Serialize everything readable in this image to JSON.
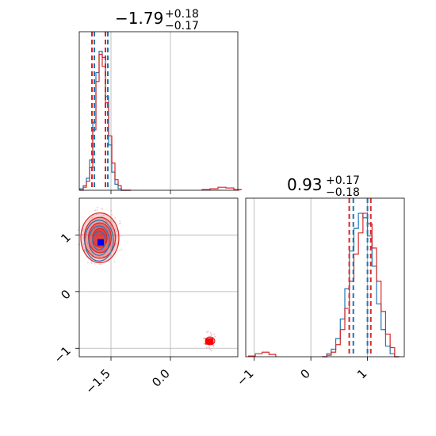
{
  "chart_data": {
    "type": "corner",
    "colors": {
      "blue": "#1f77b4",
      "red": "#d62728",
      "marker_blue": "#0000ff",
      "marker_red": "#ff0000"
    },
    "grid": true,
    "panels": [
      {
        "id": "hist_param1",
        "type": "histogram",
        "title": {
          "value": "−1.79",
          "plus": "+0.18",
          "minus": "−0.17"
        },
        "xlim": [
          -2.3,
          1.7
        ],
        "ylim": [
          0,
          1.05
        ],
        "xticks": [
          -1.5,
          0.0
        ],
        "bins_x": [
          -2.28,
          -2.2,
          -2.12,
          -2.04,
          -1.96,
          -1.88,
          -1.8,
          -1.72,
          -1.64,
          -1.56,
          -1.48,
          -1.4,
          -1.32,
          -1.24,
          -1.16,
          -1.08
        ],
        "blue_y": [
          0.01,
          0.03,
          0.08,
          0.2,
          0.45,
          0.78,
          0.92,
          0.88,
          0.62,
          0.3,
          0.12,
          0.04,
          0.01,
          0.0,
          0.0,
          0.0
        ],
        "red_y": [
          0.0,
          0.02,
          0.06,
          0.15,
          0.4,
          0.72,
          0.9,
          0.82,
          0.58,
          0.36,
          0.18,
          0.07,
          0.03,
          0.0,
          0.0,
          0.0
        ],
        "red_outlier": {
          "x": [
            0.8,
            1.0,
            1.2,
            1.4,
            1.6
          ],
          "y": [
            0.005,
            0.01,
            0.02,
            0.015,
            0.005
          ]
        },
        "blue_quantiles": [
          -1.96,
          -1.62
        ],
        "red_quantiles": [
          -1.98,
          -1.64
        ]
      },
      {
        "id": "scatter_param1_param2",
        "type": "contour",
        "xlim": [
          -2.3,
          1.7
        ],
        "ylim": [
          -1.15,
          1.65
        ],
        "xticks": [
          -1.5,
          0.0
        ],
        "xtick_labels": [
          "−1.5",
          "0.0"
        ],
        "yticks": [
          -1,
          0,
          1
        ],
        "ytick_labels": [
          "−1",
          "0",
          "1"
        ],
        "red_cluster": {
          "cx": -1.78,
          "cy": 0.95,
          "rx": 0.48,
          "ry": 0.44
        },
        "blue_cluster": {
          "cx": -1.8,
          "cy": 0.9,
          "rx": 0.36,
          "ry": 0.36
        },
        "red_outlier_cluster": {
          "cx": 1.0,
          "cy": -0.87,
          "rx": 0.1,
          "ry": 0.06
        },
        "blue_marker": {
          "x": -1.76,
          "y": 0.87
        },
        "red_marker": {
          "x": 0.98,
          "y": -0.88
        }
      },
      {
        "id": "hist_param2",
        "type": "histogram",
        "title": {
          "value": "0.93",
          "plus": "+0.17",
          "minus": "−0.18"
        },
        "xlim": [
          -1.15,
          1.65
        ],
        "ylim": [
          0,
          1.05
        ],
        "xticks": [
          -1,
          0,
          1
        ],
        "xtick_labels": [
          "−1",
          "0",
          "1"
        ],
        "bins_x": [
          0.2,
          0.28,
          0.36,
          0.44,
          0.52,
          0.6,
          0.68,
          0.76,
          0.84,
          0.92,
          1.0,
          1.08,
          1.16,
          1.24,
          1.32,
          1.4,
          1.48
        ],
        "blue_y": [
          0.0,
          0.02,
          0.05,
          0.12,
          0.25,
          0.45,
          0.7,
          0.85,
          0.95,
          0.92,
          0.8,
          0.6,
          0.35,
          0.18,
          0.07,
          0.02,
          0.0
        ],
        "red_y": [
          0.0,
          0.01,
          0.03,
          0.08,
          0.18,
          0.32,
          0.5,
          0.68,
          0.82,
          0.95,
          0.88,
          0.72,
          0.5,
          0.3,
          0.15,
          0.06,
          0.0
        ],
        "red_outlier": {
          "x": [
            -1.1,
            -0.98,
            -0.86,
            -0.74
          ],
          "y": [
            0.005,
            0.02,
            0.03,
            0.015
          ]
        },
        "blue_quantiles": [
          0.75,
          1.0
        ],
        "red_quantiles": [
          0.72,
          1.1
        ]
      }
    ]
  }
}
